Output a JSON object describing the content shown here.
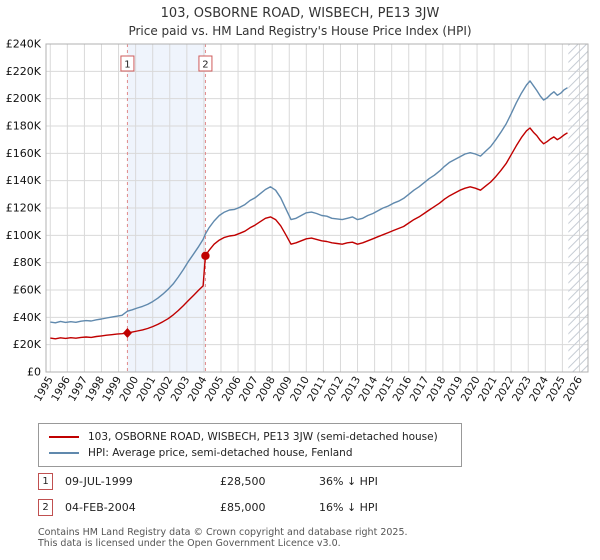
{
  "page": {
    "title": "103, OSBORNE ROAD, WISBECH, PE13 3JW",
    "subtitle": "Price paid vs. HM Land Registry's House Price Index (HPI)"
  },
  "chart_data": {
    "type": "line",
    "title": "103, OSBORNE ROAD, WISBECH, PE13 3JW",
    "subtitle": "Price paid vs. HM Land Registry's House Price Index (HPI)",
    "x_range": [
      1994.75,
      2026.5
    ],
    "y_range": [
      0,
      240000
    ],
    "x_ticks": [
      1995,
      1996,
      1997,
      1998,
      1999,
      2000,
      2001,
      2002,
      2003,
      2004,
      2005,
      2006,
      2007,
      2008,
      2009,
      2010,
      2011,
      2012,
      2013,
      2014,
      2015,
      2016,
      2017,
      2018,
      2019,
      2020,
      2021,
      2022,
      2023,
      2024,
      2025,
      2026
    ],
    "y_ticks": [
      0,
      20000,
      40000,
      60000,
      80000,
      100000,
      120000,
      140000,
      160000,
      180000,
      200000,
      220000,
      240000
    ],
    "y_tick_labels": [
      "£0",
      "£20K",
      "£40K",
      "£60K",
      "£80K",
      "£100K",
      "£120K",
      "£140K",
      "£160K",
      "£180K",
      "£200K",
      "£220K",
      "£240K"
    ],
    "grid": true,
    "legend_position": "bottom",
    "between_sales_band": {
      "from": 1999.52,
      "to": 2004.09
    },
    "future_hatch_band": {
      "from": 2025.35,
      "to": 2026.5
    },
    "sales": [
      {
        "label": "1",
        "x": 1999.52,
        "y": 28500,
        "marker": "diamond",
        "date": "09-JUL-1999",
        "price": "£28,500",
        "vs_hpi": "36% ↓ HPI"
      },
      {
        "label": "2",
        "x": 2004.09,
        "y": 85000,
        "marker": "circle",
        "date": "04-FEB-2004",
        "price": "£85,000",
        "vs_hpi": "16% ↓ HPI"
      }
    ],
    "series": [
      {
        "name": "103, OSBORNE ROAD, WISBECH, PE13 3JW (semi-detached house)",
        "color": "#c00000",
        "points": [
          [
            1995.0,
            24800
          ],
          [
            1995.3,
            24300
          ],
          [
            1995.6,
            25000
          ],
          [
            1995.9,
            24600
          ],
          [
            1996.2,
            25100
          ],
          [
            1996.5,
            24700
          ],
          [
            1996.8,
            25300
          ],
          [
            1997.1,
            25600
          ],
          [
            1997.4,
            25300
          ],
          [
            1997.7,
            26000
          ],
          [
            1998.0,
            26400
          ],
          [
            1998.3,
            26900
          ],
          [
            1998.6,
            27300
          ],
          [
            1998.9,
            27700
          ],
          [
            1999.2,
            28000
          ],
          [
            1999.52,
            28500
          ],
          [
            1999.8,
            29200
          ],
          [
            2000.1,
            30000
          ],
          [
            2000.4,
            30800
          ],
          [
            2000.7,
            31800
          ],
          [
            2001.0,
            33200
          ],
          [
            2001.3,
            34800
          ],
          [
            2001.6,
            36800
          ],
          [
            2001.9,
            39000
          ],
          [
            2002.2,
            41800
          ],
          [
            2002.5,
            45000
          ],
          [
            2002.8,
            48600
          ],
          [
            2003.1,
            52400
          ],
          [
            2003.4,
            56200
          ],
          [
            2003.7,
            60000
          ],
          [
            2003.95,
            63000
          ],
          [
            2004.09,
            85000
          ],
          [
            2004.3,
            89000
          ],
          [
            2004.6,
            93500
          ],
          [
            2004.9,
            96500
          ],
          [
            2005.2,
            98500
          ],
          [
            2005.5,
            99500
          ],
          [
            2005.8,
            100000
          ],
          [
            2006.1,
            101500
          ],
          [
            2006.4,
            103000
          ],
          [
            2006.7,
            105500
          ],
          [
            2007.0,
            107500
          ],
          [
            2007.3,
            110000
          ],
          [
            2007.6,
            112500
          ],
          [
            2007.9,
            113500
          ],
          [
            2008.2,
            111500
          ],
          [
            2008.5,
            107000
          ],
          [
            2008.8,
            100500
          ],
          [
            2009.1,
            93500
          ],
          [
            2009.4,
            94500
          ],
          [
            2009.7,
            96000
          ],
          [
            2010.0,
            97500
          ],
          [
            2010.3,
            98000
          ],
          [
            2010.6,
            97000
          ],
          [
            2010.9,
            96000
          ],
          [
            2011.2,
            95500
          ],
          [
            2011.5,
            94500
          ],
          [
            2011.8,
            94000
          ],
          [
            2012.1,
            93500
          ],
          [
            2012.4,
            94500
          ],
          [
            2012.7,
            95000
          ],
          [
            2013.0,
            93500
          ],
          [
            2013.3,
            94500
          ],
          [
            2013.6,
            96000
          ],
          [
            2013.9,
            97500
          ],
          [
            2014.2,
            99000
          ],
          [
            2014.5,
            100500
          ],
          [
            2014.8,
            102000
          ],
          [
            2015.1,
            103500
          ],
          [
            2015.4,
            105000
          ],
          [
            2015.7,
            106500
          ],
          [
            2016.0,
            109000
          ],
          [
            2016.3,
            111500
          ],
          [
            2016.6,
            113500
          ],
          [
            2016.9,
            116000
          ],
          [
            2017.2,
            118500
          ],
          [
            2017.5,
            121000
          ],
          [
            2017.8,
            123500
          ],
          [
            2018.1,
            126500
          ],
          [
            2018.4,
            129000
          ],
          [
            2018.7,
            131000
          ],
          [
            2019.0,
            133000
          ],
          [
            2019.3,
            134500
          ],
          [
            2019.6,
            135500
          ],
          [
            2019.9,
            134500
          ],
          [
            2020.2,
            133000
          ],
          [
            2020.5,
            136000
          ],
          [
            2020.8,
            139000
          ],
          [
            2021.1,
            143000
          ],
          [
            2021.4,
            147500
          ],
          [
            2021.7,
            152500
          ],
          [
            2022.0,
            159000
          ],
          [
            2022.3,
            165500
          ],
          [
            2022.6,
            171500
          ],
          [
            2022.9,
            176500
          ],
          [
            2023.1,
            178500
          ],
          [
            2023.3,
            175500
          ],
          [
            2023.5,
            173000
          ],
          [
            2023.7,
            169500
          ],
          [
            2023.9,
            167000
          ],
          [
            2024.1,
            168500
          ],
          [
            2024.3,
            170500
          ],
          [
            2024.5,
            172000
          ],
          [
            2024.7,
            170000
          ],
          [
            2024.9,
            171500
          ],
          [
            2025.1,
            173500
          ],
          [
            2025.3,
            175000
          ]
        ]
      },
      {
        "name": "HPI: Average price, semi-detached house, Fenland",
        "color": "#6089ad",
        "points": [
          [
            1995.0,
            36500
          ],
          [
            1995.3,
            36000
          ],
          [
            1995.6,
            37000
          ],
          [
            1995.9,
            36300
          ],
          [
            1996.2,
            36800
          ],
          [
            1996.5,
            36400
          ],
          [
            1996.8,
            37200
          ],
          [
            1997.1,
            37600
          ],
          [
            1997.4,
            37300
          ],
          [
            1997.7,
            38200
          ],
          [
            1998.0,
            38800
          ],
          [
            1998.3,
            39500
          ],
          [
            1998.6,
            40200
          ],
          [
            1998.9,
            40800
          ],
          [
            1999.2,
            41500
          ],
          [
            1999.52,
            44500
          ],
          [
            1999.8,
            45500
          ],
          [
            2000.1,
            46800
          ],
          [
            2000.4,
            48000
          ],
          [
            2000.7,
            49500
          ],
          [
            2001.0,
            51500
          ],
          [
            2001.3,
            54000
          ],
          [
            2001.6,
            57000
          ],
          [
            2001.9,
            60500
          ],
          [
            2002.2,
            64500
          ],
          [
            2002.5,
            69500
          ],
          [
            2002.8,
            75000
          ],
          [
            2003.1,
            81000
          ],
          [
            2003.4,
            86500
          ],
          [
            2003.7,
            92000
          ],
          [
            2003.95,
            97000
          ],
          [
            2004.09,
            101000
          ],
          [
            2004.3,
            105500
          ],
          [
            2004.6,
            110500
          ],
          [
            2004.9,
            114500
          ],
          [
            2005.2,
            117000
          ],
          [
            2005.5,
            118500
          ],
          [
            2005.8,
            119000
          ],
          [
            2006.1,
            120500
          ],
          [
            2006.4,
            122500
          ],
          [
            2006.7,
            125500
          ],
          [
            2007.0,
            127500
          ],
          [
            2007.3,
            130500
          ],
          [
            2007.6,
            133500
          ],
          [
            2007.9,
            135500
          ],
          [
            2008.2,
            133000
          ],
          [
            2008.5,
            127500
          ],
          [
            2008.8,
            119500
          ],
          [
            2009.1,
            111500
          ],
          [
            2009.4,
            112500
          ],
          [
            2009.7,
            114500
          ],
          [
            2010.0,
            116500
          ],
          [
            2010.3,
            117000
          ],
          [
            2010.6,
            116000
          ],
          [
            2010.9,
            114500
          ],
          [
            2011.2,
            114000
          ],
          [
            2011.5,
            112500
          ],
          [
            2011.8,
            112000
          ],
          [
            2012.1,
            111500
          ],
          [
            2012.4,
            112500
          ],
          [
            2012.7,
            113500
          ],
          [
            2013.0,
            111500
          ],
          [
            2013.3,
            112500
          ],
          [
            2013.6,
            114500
          ],
          [
            2013.9,
            116000
          ],
          [
            2014.2,
            118000
          ],
          [
            2014.5,
            120000
          ],
          [
            2014.8,
            121500
          ],
          [
            2015.1,
            123500
          ],
          [
            2015.4,
            125000
          ],
          [
            2015.7,
            127000
          ],
          [
            2016.0,
            130000
          ],
          [
            2016.3,
            133000
          ],
          [
            2016.6,
            135500
          ],
          [
            2016.9,
            138500
          ],
          [
            2017.2,
            141500
          ],
          [
            2017.5,
            144000
          ],
          [
            2017.8,
            147000
          ],
          [
            2018.1,
            150500
          ],
          [
            2018.4,
            153500
          ],
          [
            2018.7,
            155500
          ],
          [
            2019.0,
            157500
          ],
          [
            2019.3,
            159500
          ],
          [
            2019.6,
            160500
          ],
          [
            2019.9,
            159500
          ],
          [
            2020.2,
            158000
          ],
          [
            2020.5,
            161500
          ],
          [
            2020.8,
            165000
          ],
          [
            2021.1,
            170000
          ],
          [
            2021.4,
            175500
          ],
          [
            2021.7,
            181500
          ],
          [
            2022.0,
            189000
          ],
          [
            2022.3,
            197000
          ],
          [
            2022.6,
            204000
          ],
          [
            2022.9,
            210000
          ],
          [
            2023.1,
            213000
          ],
          [
            2023.3,
            209500
          ],
          [
            2023.5,
            206000
          ],
          [
            2023.7,
            202000
          ],
          [
            2023.9,
            199000
          ],
          [
            2024.1,
            200500
          ],
          [
            2024.3,
            203000
          ],
          [
            2024.5,
            205000
          ],
          [
            2024.7,
            202500
          ],
          [
            2024.9,
            204000
          ],
          [
            2025.1,
            206500
          ],
          [
            2025.3,
            208000
          ]
        ]
      }
    ]
  },
  "legend": {
    "items": [
      {
        "label": "103, OSBORNE ROAD, WISBECH, PE13 3JW (semi-detached house)",
        "color": "#c00000"
      },
      {
        "label": "HPI: Average price, semi-detached house, Fenland",
        "color": "#6089ad"
      }
    ]
  },
  "transactions": [
    {
      "num": "1",
      "date": "09-JUL-1999",
      "price": "£28,500",
      "vs_hpi": "36% ↓ HPI"
    },
    {
      "num": "2",
      "date": "04-FEB-2004",
      "price": "£85,000",
      "vs_hpi": "16% ↓ HPI"
    }
  ],
  "footer": {
    "line1": "Contains HM Land Registry data © Crown copyright and database right 2025.",
    "line2": "This data is licensed under the Open Government Licence v3.0."
  }
}
